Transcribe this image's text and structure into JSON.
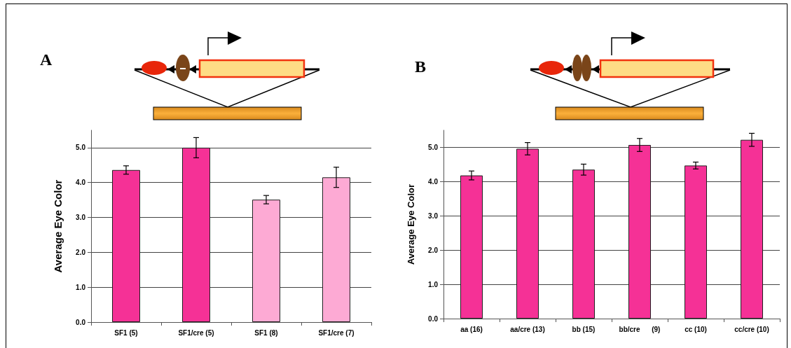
{
  "chart_data": [
    {
      "type": "bar",
      "title": "A",
      "ylabel": "Average Eye Color",
      "categories": [
        "SF1 (5)",
        "SF1/cre (5)",
        "SF1 (8)",
        "SF1/cre (7)"
      ],
      "values": [
        4.36,
        5.0,
        3.51,
        4.15
      ],
      "errors": [
        0.12,
        0.29,
        0.12,
        0.29
      ],
      "colors": [
        "#f53196",
        "#f53196",
        "#fdaad4",
        "#fdaad4"
      ],
      "ylim": [
        0,
        5.5
      ],
      "yticks": [
        {
          "value": 0,
          "label": "0.0"
        },
        {
          "value": 1,
          "label": "1.0"
        },
        {
          "value": 2,
          "label": "2.0"
        },
        {
          "value": 3,
          "label": "3.0"
        },
        {
          "value": 4,
          "label": "4.0"
        },
        {
          "value": 5,
          "label": "5.0"
        }
      ],
      "grid": "y"
    },
    {
      "type": "bar",
      "title": "B",
      "ylabel": "Average Eye Color",
      "categories": [
        "aa (16)",
        "aa/cre (13)",
        "bb (15)",
        "bb/cre      (9)",
        "cc (10)",
        "cc/cre (10)"
      ],
      "values": [
        4.18,
        4.96,
        4.35,
        5.07,
        4.47,
        5.22
      ],
      "errors": [
        0.13,
        0.18,
        0.16,
        0.19,
        0.1,
        0.19
      ],
      "color": "#f53196",
      "ylim": [
        0,
        5.5
      ],
      "yticks": [
        {
          "value": 0,
          "label": "0.0"
        },
        {
          "value": 1,
          "label": "1.0"
        },
        {
          "value": 2,
          "label": "2.0"
        },
        {
          "value": 3,
          "label": "3.0"
        },
        {
          "value": 4,
          "label": "4.0"
        },
        {
          "value": 5,
          "label": "5.0"
        }
      ],
      "grid": "y"
    }
  ]
}
